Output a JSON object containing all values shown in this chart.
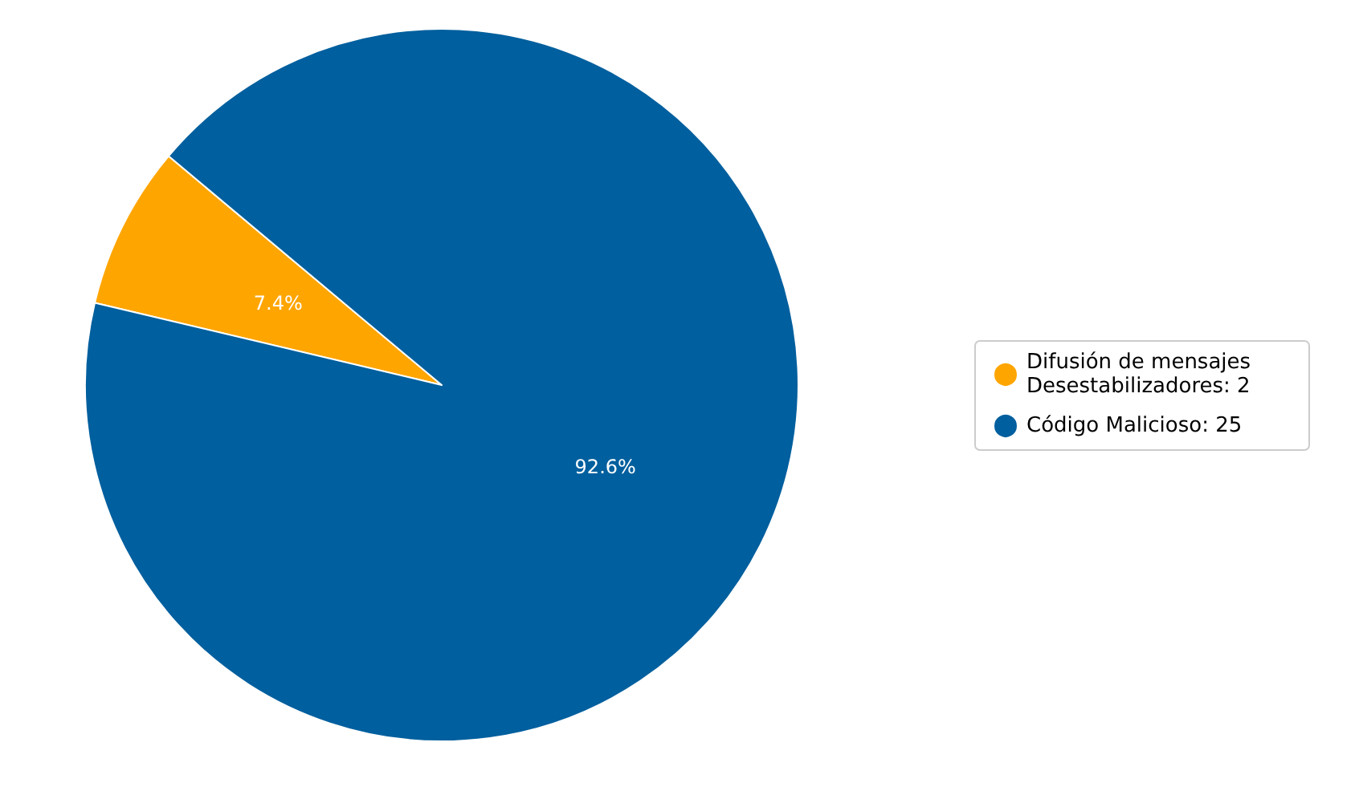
{
  "chart_data": {
    "type": "pie",
    "categories": [
      "Difusión de mensajes Desestabilizadores: 2",
      "Código Malicioso: 25"
    ],
    "values": [
      7.4,
      92.6
    ],
    "colors": [
      "#ffa500",
      "#005f9e"
    ],
    "value_labels": [
      "7.4%",
      "92.6%"
    ],
    "legend": "right"
  }
}
